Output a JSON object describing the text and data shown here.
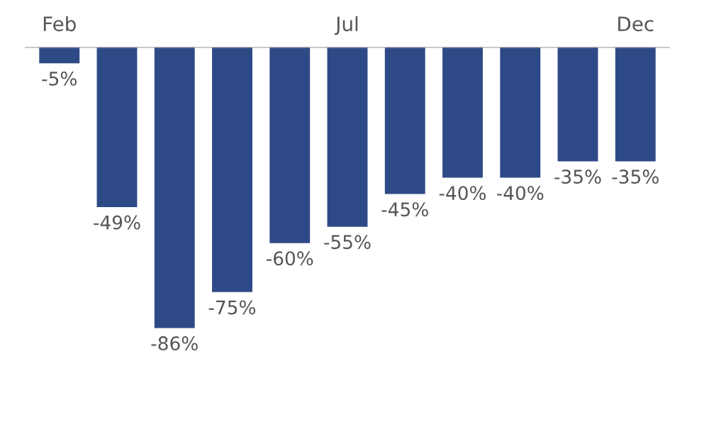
{
  "chart_data": {
    "type": "bar",
    "categories": [
      "Feb",
      null,
      null,
      null,
      null,
      "Jul",
      null,
      null,
      null,
      null,
      "Dec"
    ],
    "values": [
      -5,
      -49,
      -86,
      -75,
      -60,
      -55,
      -45,
      -40,
      -40,
      -35,
      -35
    ],
    "value_labels": [
      "-5%",
      "-49%",
      "-86%",
      "-75%",
      "-60%",
      "-55%",
      "-45%",
      "-40%",
      "-40%",
      "-35%",
      "-35%"
    ],
    "color": "#2e4a86",
    "grid": false,
    "legend": false,
    "tick_labels": "x"
  }
}
